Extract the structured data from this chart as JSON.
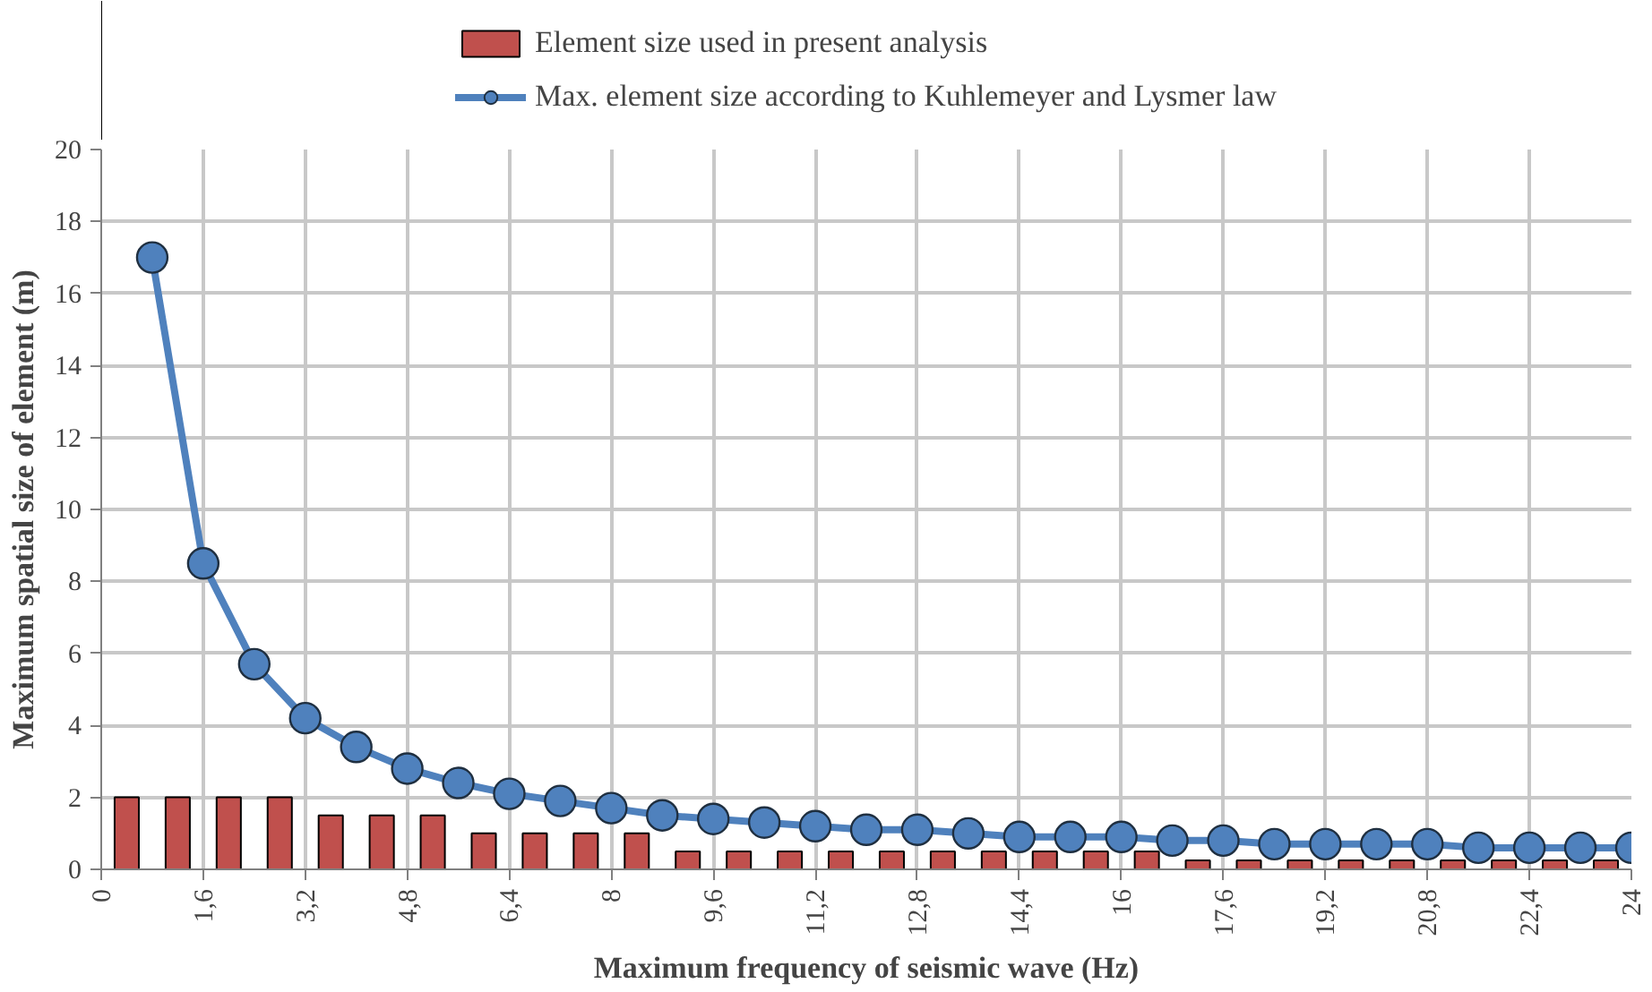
{
  "chart_data": {
    "type": "bar",
    "xlabel": "Maximum frequency of seismic wave (Hz)",
    "ylabel": "Maximum spatial size of element (m)",
    "xlim": [
      0,
      24
    ],
    "ylim": [
      0,
      20
    ],
    "xticks": [
      0,
      {
        "value": 1.6,
        "label": "1,6"
      },
      {
        "value": 3.2,
        "label": "3,2"
      },
      {
        "value": 4.8,
        "label": "4,8"
      },
      {
        "value": 6.4,
        "label": "6,4"
      },
      8,
      {
        "value": 9.6,
        "label": "9,6"
      },
      {
        "value": 11.2,
        "label": "11,2"
      },
      {
        "value": 12.8,
        "label": "12,8"
      },
      {
        "value": 14.4,
        "label": "14,4"
      },
      16,
      {
        "value": 17.6,
        "label": "17,6"
      },
      {
        "value": 19.2,
        "label": "19,2"
      },
      {
        "value": 20.8,
        "label": "20,8"
      },
      {
        "value": 22.4,
        "label": "22,4"
      },
      24
    ],
    "yticks": [
      0,
      2,
      4,
      6,
      8,
      10,
      12,
      14,
      16,
      18,
      20
    ],
    "grid": true,
    "legend": "top",
    "marker": "circle",
    "line_style": "solid",
    "series": [
      {
        "name": "Element size used in present analysis",
        "color": "#c0504d",
        "x": [
          0.4,
          1.2,
          2.0,
          2.8,
          3.6,
          4.4,
          5.2,
          6.0,
          6.8,
          7.6,
          8.4,
          9.2,
          10.0,
          10.8,
          11.6,
          12.4,
          13.2,
          14.0,
          14.8,
          15.6,
          16.4,
          17.2,
          18.0,
          18.8,
          19.6,
          20.4,
          21.2,
          22.0,
          22.8,
          23.6
        ],
        "values": [
          2,
          2,
          2,
          2,
          1.5,
          1.5,
          1.5,
          1,
          1,
          1,
          1,
          0.5,
          0.5,
          0.5,
          0.5,
          0.5,
          0.5,
          0.5,
          0.5,
          0.5,
          0.5,
          0.25,
          0.25,
          0.25,
          0.25,
          0.25,
          0.25,
          0.25,
          0.25,
          0.25
        ]
      },
      {
        "name": "Max. element size according to Kuhlemeyer and Lysmer law",
        "type": "line",
        "color": "#4f81bd",
        "x": [
          0.8,
          1.6,
          2.4,
          3.2,
          4.0,
          4.8,
          5.6,
          6.4,
          7.2,
          8.0,
          8.8,
          9.6,
          10.4,
          11.2,
          12.0,
          12.8,
          13.6,
          14.4,
          15.2,
          16.0,
          16.8,
          17.6,
          18.4,
          19.2,
          20.0,
          20.8,
          21.6,
          22.4,
          23.2,
          24.0
        ],
        "values": [
          17,
          8.5,
          5.7,
          4.2,
          3.4,
          2.8,
          2.4,
          2.1,
          1.9,
          1.7,
          1.5,
          1.4,
          1.3,
          1.2,
          1.1,
          1.1,
          1.0,
          0.9,
          0.9,
          0.9,
          0.8,
          0.8,
          0.7,
          0.7,
          0.7,
          0.7,
          0.6,
          0.6,
          0.6,
          0.6
        ]
      }
    ]
  }
}
